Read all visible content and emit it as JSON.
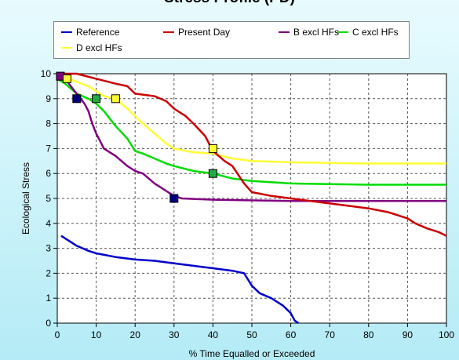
{
  "chart_data": {
    "type": "line",
    "title": "Stress Profile (PD)",
    "xlabel": "% Time Equalled or Exceeded",
    "ylabel": "Ecological Stress",
    "xlim": [
      0,
      100
    ],
    "ylim": [
      0,
      10
    ],
    "x_ticks": [
      "0",
      "10",
      "20",
      "30",
      "40",
      "50",
      "60",
      "70",
      "80",
      "90",
      "100"
    ],
    "y_ticks": [
      "0",
      "1",
      "2",
      "3",
      "4",
      "5",
      "6",
      "7",
      "8",
      "9",
      "10"
    ],
    "grid": true,
    "legend_position": "top",
    "series": [
      {
        "name": "Reference",
        "color": "#0000cc",
        "points": [
          [
            1,
            3.5
          ],
          [
            3,
            3.3
          ],
          [
            5,
            3.1
          ],
          [
            8,
            2.9
          ],
          [
            10,
            2.8
          ],
          [
            15,
            2.65
          ],
          [
            20,
            2.55
          ],
          [
            25,
            2.5
          ],
          [
            30,
            2.4
          ],
          [
            35,
            2.3
          ],
          [
            40,
            2.2
          ],
          [
            45,
            2.1
          ],
          [
            48,
            2.0
          ],
          [
            50,
            1.5
          ],
          [
            52,
            1.2
          ],
          [
            55,
            1.0
          ],
          [
            58,
            0.7
          ],
          [
            60,
            0.4
          ],
          [
            61,
            0.1
          ],
          [
            62,
            0.0
          ]
        ]
      },
      {
        "name": "Present Day",
        "color": "#cc0000",
        "points": [
          [
            0,
            10.0
          ],
          [
            5,
            10.0
          ],
          [
            10,
            9.8
          ],
          [
            15,
            9.6
          ],
          [
            18,
            9.5
          ],
          [
            20,
            9.2
          ],
          [
            25,
            9.1
          ],
          [
            28,
            8.9
          ],
          [
            30,
            8.6
          ],
          [
            33,
            8.3
          ],
          [
            35,
            8.0
          ],
          [
            38,
            7.5
          ],
          [
            40,
            6.9
          ],
          [
            43,
            6.5
          ],
          [
            45,
            6.3
          ],
          [
            48,
            5.6
          ],
          [
            50,
            5.25
          ],
          [
            55,
            5.1
          ],
          [
            60,
            5.0
          ],
          [
            65,
            4.9
          ],
          [
            70,
            4.8
          ],
          [
            75,
            4.7
          ],
          [
            80,
            4.6
          ],
          [
            85,
            4.45
          ],
          [
            90,
            4.2
          ],
          [
            92,
            4.0
          ],
          [
            95,
            3.8
          ],
          [
            98,
            3.65
          ],
          [
            100,
            3.5
          ]
        ]
      },
      {
        "name": "B excl HFs",
        "color": "#800080",
        "points": [
          [
            0,
            10.0
          ],
          [
            2,
            9.8
          ],
          [
            4,
            9.4
          ],
          [
            6,
            9.0
          ],
          [
            7,
            8.8
          ],
          [
            8,
            8.5
          ],
          [
            9,
            8.0
          ],
          [
            10,
            7.6
          ],
          [
            12,
            7.0
          ],
          [
            15,
            6.7
          ],
          [
            18,
            6.3
          ],
          [
            20,
            6.1
          ],
          [
            22,
            6.0
          ],
          [
            25,
            5.6
          ],
          [
            28,
            5.3
          ],
          [
            30,
            5.1
          ],
          [
            32,
            5.0
          ],
          [
            40,
            4.95
          ],
          [
            60,
            4.9
          ],
          [
            80,
            4.9
          ],
          [
            100,
            4.9
          ]
        ]
      },
      {
        "name": "C excl HFs",
        "color": "#00dd00",
        "points": [
          [
            0,
            9.8
          ],
          [
            2,
            9.6
          ],
          [
            5,
            9.2
          ],
          [
            8,
            9.0
          ],
          [
            10,
            8.8
          ],
          [
            12,
            8.5
          ],
          [
            15,
            7.9
          ],
          [
            18,
            7.4
          ],
          [
            20,
            6.9
          ],
          [
            22,
            6.8
          ],
          [
            25,
            6.6
          ],
          [
            28,
            6.4
          ],
          [
            30,
            6.3
          ],
          [
            35,
            6.1
          ],
          [
            40,
            6.0
          ],
          [
            45,
            5.8
          ],
          [
            50,
            5.7
          ],
          [
            60,
            5.6
          ],
          [
            80,
            5.55
          ],
          [
            100,
            5.55
          ]
        ]
      },
      {
        "name": "D excl HFs",
        "color": "#ffff33",
        "points": [
          [
            0,
            9.8
          ],
          [
            3,
            9.8
          ],
          [
            8,
            9.5
          ],
          [
            12,
            9.1
          ],
          [
            15,
            9.0
          ],
          [
            18,
            8.6
          ],
          [
            20,
            8.3
          ],
          [
            22,
            8.0
          ],
          [
            25,
            7.6
          ],
          [
            28,
            7.2
          ],
          [
            30,
            7.0
          ],
          [
            35,
            6.85
          ],
          [
            40,
            6.8
          ],
          [
            45,
            6.6
          ],
          [
            50,
            6.5
          ],
          [
            60,
            6.45
          ],
          [
            80,
            6.4
          ],
          [
            100,
            6.4
          ]
        ]
      }
    ],
    "markers": [
      {
        "color": "#ffff33",
        "x": 0.8,
        "y": 9.9
      },
      {
        "color": "#800080",
        "x": 0.8,
        "y": 9.9
      },
      {
        "color": "#ffff33",
        "x": 2.5,
        "y": 9.8
      },
      {
        "color": "#000080",
        "x": 5,
        "y": 9.0
      },
      {
        "color": "#22aa44",
        "x": 10,
        "y": 9.0
      },
      {
        "color": "#ffff33",
        "x": 15,
        "y": 9.0
      },
      {
        "color": "#000080",
        "x": 30,
        "y": 5.0
      },
      {
        "color": "#ffff33",
        "x": 40,
        "y": 7.0
      },
      {
        "color": "#22aa44",
        "x": 40,
        "y": 6.0
      }
    ]
  }
}
